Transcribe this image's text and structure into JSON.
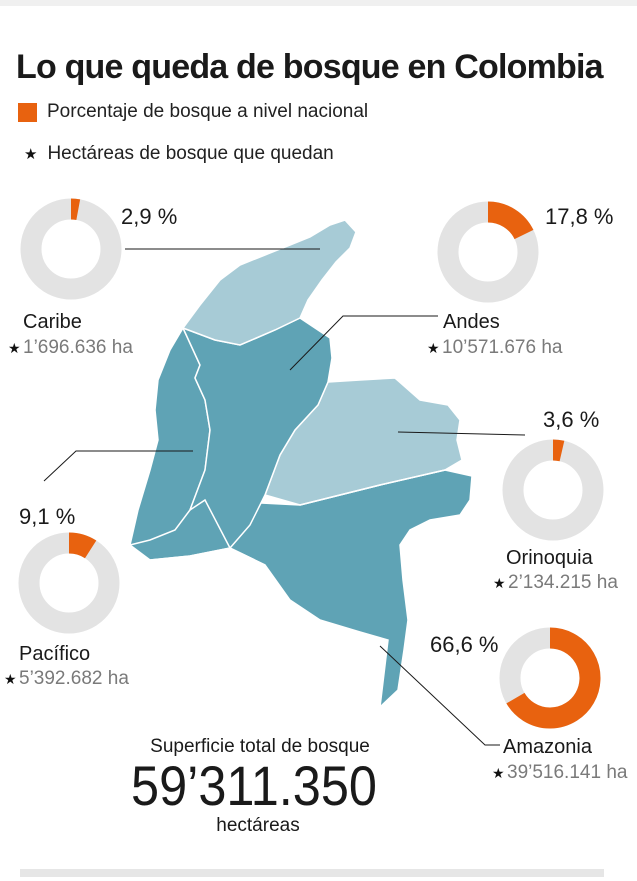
{
  "header": {
    "title": "Lo que queda de bosque en Colombia",
    "legend_percent_label": "Porcentaje de bosque a nivel nacional",
    "legend_hectares_label": "Hectáreas de bosque que quedan"
  },
  "colors": {
    "forest_share": "#e8620f",
    "ring_background": "#e3e3e3",
    "region_dark": "#5fa3b5",
    "region_light": "#a7cbd6",
    "region_border": "#ffffff",
    "leader_line": "#1a1a1a"
  },
  "icons": {
    "hectares_marker": "star-icon",
    "percent_marker": "square-swatch"
  },
  "chart_data": {
    "type": "pie",
    "style": "donut",
    "title": "Lo que queda de bosque en Colombia",
    "series": [
      {
        "region": "Caribe",
        "percent": 2.9,
        "percent_label": "2,9 %",
        "hectares_label": "1’696.636 ha"
      },
      {
        "region": "Andes",
        "percent": 17.8,
        "percent_label": "17,8 %",
        "hectares_label": "10’571.676 ha"
      },
      {
        "region": "Orinoquia",
        "percent": 3.6,
        "percent_label": "3,6 %",
        "hectares_label": "2’134.215 ha"
      },
      {
        "region": "Pacífico",
        "percent": 9.1,
        "percent_label": "9,1 %",
        "hectares_label": "5’392.682 ha"
      },
      {
        "region": "Amazonia",
        "percent": 66.6,
        "percent_label": "66,6 %",
        "hectares_label": "39’516.141 ha"
      }
    ]
  },
  "total": {
    "label": "Superficie total de bosque",
    "value": "59’311.350",
    "unit": "hectáreas"
  }
}
